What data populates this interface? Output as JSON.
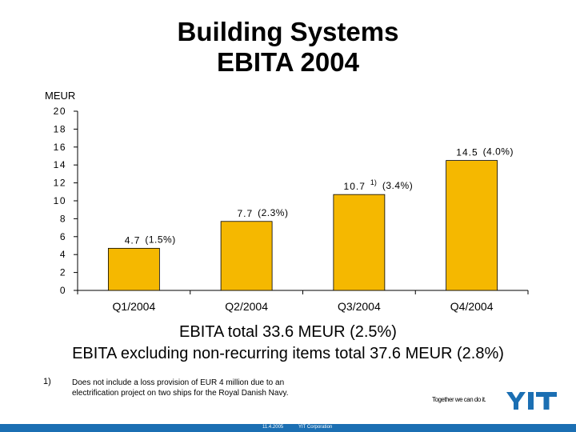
{
  "title": {
    "line1": "Building Systems",
    "line2": "EBITA 2004"
  },
  "chart_data": {
    "type": "bar",
    "ylabel": "MEUR",
    "ylim": [
      0,
      20
    ],
    "yticks": [
      "0",
      "2",
      "4",
      "6",
      "8",
      "10",
      "12",
      "14",
      "16",
      "18",
      "20"
    ],
    "categories": [
      "Q1/2004",
      "Q2/2004",
      "Q3/2004",
      "Q4/2004"
    ],
    "values": [
      4.7,
      7.7,
      10.7,
      14.5
    ],
    "value_labels": [
      "4.7",
      "7.7",
      "10.7",
      "14.5"
    ],
    "footnote_marks": [
      "",
      "",
      "1)",
      ""
    ],
    "margin_labels": [
      "(1.5%)",
      "(2.3%)",
      "(3.4%)",
      "(4.0%)"
    ],
    "bar_color": "#f5b800",
    "grid": false,
    "legend": "none"
  },
  "summary": {
    "line1": "EBITA total 33.6 MEUR (2.5%)",
    "line2": "EBITA excluding non-recurring items total 37.6 MEUR (2.8%)"
  },
  "footnote": {
    "mark": "1)",
    "text": "Does not include a loss provision of EUR 4 million due to an electrification project on two ships for the Royal Danish Navy."
  },
  "branding": {
    "tagline": "Together we can do it.",
    "logo_text": "YIT",
    "accent_color": "#1b6fb3"
  },
  "footer": {
    "date": "11.4.2005",
    "company": "YIT Corporation"
  }
}
